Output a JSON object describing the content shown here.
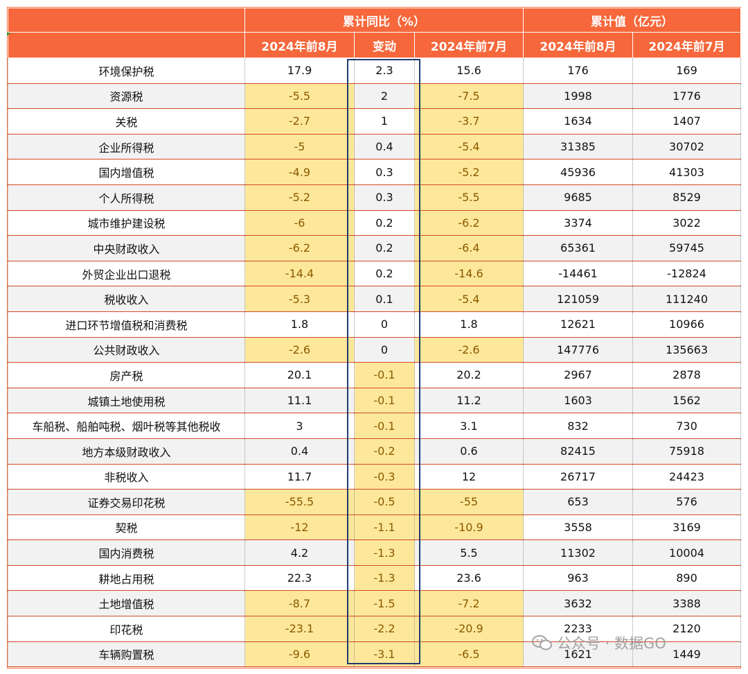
{
  "colors": {
    "header_bg": "#f6673b",
    "highlight_box": "#1f3a6e",
    "negative_fill": "#fde79a"
  },
  "header": {
    "group1": "累计同比（%）",
    "group2": "累计值（亿元）",
    "columns": [
      "2024年前8月",
      "变动",
      "2024年前7月",
      "2024年前8月",
      "2024年前7月"
    ]
  },
  "rows": [
    {
      "name": "环境保护税",
      "yoy_aug": "17.9",
      "change": "2.3",
      "yoy_jul": "15.6",
      "val_aug": "176",
      "val_jul": "169"
    },
    {
      "name": "资源税",
      "yoy_aug": "-5.5",
      "change": "2",
      "yoy_jul": "-7.5",
      "val_aug": "1998",
      "val_jul": "1776"
    },
    {
      "name": "关税",
      "yoy_aug": "-2.7",
      "change": "1",
      "yoy_jul": "-3.7",
      "val_aug": "1634",
      "val_jul": "1407"
    },
    {
      "name": "企业所得税",
      "yoy_aug": "-5",
      "change": "0.4",
      "yoy_jul": "-5.4",
      "val_aug": "31385",
      "val_jul": "30702"
    },
    {
      "name": "国内增值税",
      "yoy_aug": "-4.9",
      "change": "0.3",
      "yoy_jul": "-5.2",
      "val_aug": "45936",
      "val_jul": "41303"
    },
    {
      "name": "个人所得税",
      "yoy_aug": "-5.2",
      "change": "0.3",
      "yoy_jul": "-5.5",
      "val_aug": "9685",
      "val_jul": "8529"
    },
    {
      "name": "城市维护建设税",
      "yoy_aug": "-6",
      "change": "0.2",
      "yoy_jul": "-6.2",
      "val_aug": "3374",
      "val_jul": "3022"
    },
    {
      "name": "中央财政收入",
      "yoy_aug": "-6.2",
      "change": "0.2",
      "yoy_jul": "-6.4",
      "val_aug": "65361",
      "val_jul": "59745"
    },
    {
      "name": "外贸企业出口退税",
      "yoy_aug": "-14.4",
      "change": "0.2",
      "yoy_jul": "-14.6",
      "val_aug": "-14461",
      "val_jul": "-12824"
    },
    {
      "name": "税收收入",
      "yoy_aug": "-5.3",
      "change": "0.1",
      "yoy_jul": "-5.4",
      "val_aug": "121059",
      "val_jul": "111240"
    },
    {
      "name": "进口环节增值税和消费税",
      "yoy_aug": "1.8",
      "change": "0",
      "yoy_jul": "1.8",
      "val_aug": "12621",
      "val_jul": "10966"
    },
    {
      "name": "公共财政收入",
      "yoy_aug": "-2.6",
      "change": "0",
      "yoy_jul": "-2.6",
      "val_aug": "147776",
      "val_jul": "135663"
    },
    {
      "name": "房产税",
      "yoy_aug": "20.1",
      "change": "-0.1",
      "yoy_jul": "20.2",
      "val_aug": "2967",
      "val_jul": "2878"
    },
    {
      "name": "城镇土地使用税",
      "yoy_aug": "11.1",
      "change": "-0.1",
      "yoy_jul": "11.2",
      "val_aug": "1603",
      "val_jul": "1562"
    },
    {
      "name": "车船税、船舶吨税、烟叶税等其他税收",
      "yoy_aug": "3",
      "change": "-0.1",
      "yoy_jul": "3.1",
      "val_aug": "832",
      "val_jul": "730"
    },
    {
      "name": "地方本级财政收入",
      "yoy_aug": "0.4",
      "change": "-0.2",
      "yoy_jul": "0.6",
      "val_aug": "82415",
      "val_jul": "75918"
    },
    {
      "name": "非税收入",
      "yoy_aug": "11.7",
      "change": "-0.3",
      "yoy_jul": "12",
      "val_aug": "26717",
      "val_jul": "24423"
    },
    {
      "name": "证券交易印花税",
      "yoy_aug": "-55.5",
      "change": "-0.5",
      "yoy_jul": "-55",
      "val_aug": "653",
      "val_jul": "576"
    },
    {
      "name": "契税",
      "yoy_aug": "-12",
      "change": "-1.1",
      "yoy_jul": "-10.9",
      "val_aug": "3558",
      "val_jul": "3169"
    },
    {
      "name": "国内消费税",
      "yoy_aug": "4.2",
      "change": "-1.3",
      "yoy_jul": "5.5",
      "val_aug": "11302",
      "val_jul": "10004"
    },
    {
      "name": "耕地占用税",
      "yoy_aug": "22.3",
      "change": "-1.3",
      "yoy_jul": "23.6",
      "val_aug": "963",
      "val_jul": "890"
    },
    {
      "name": "土地增值税",
      "yoy_aug": "-8.7",
      "change": "-1.5",
      "yoy_jul": "-7.2",
      "val_aug": "3632",
      "val_jul": "3388"
    },
    {
      "name": "印花税",
      "yoy_aug": "-23.1",
      "change": "-2.2",
      "yoy_jul": "-20.9",
      "val_aug": "2233",
      "val_jul": "2120"
    },
    {
      "name": "车辆购置税",
      "yoy_aug": "-9.6",
      "change": "-3.1",
      "yoy_jul": "-6.5",
      "val_aug": "1621",
      "val_jul": "1449"
    }
  ],
  "watermark": {
    "text": "公众号 · 数据GO"
  },
  "chart_data": {
    "type": "table",
    "title": "",
    "column_groups": [
      {
        "label": "累计同比（%）",
        "columns": [
          "2024年前8月",
          "变动",
          "2024年前7月"
        ]
      },
      {
        "label": "累计值（亿元）",
        "columns": [
          "2024年前8月",
          "2024年前7月"
        ]
      }
    ],
    "note": "rows array holds all cell values; negative YoY cells are highlighted yellow; 变动 column outlined"
  }
}
